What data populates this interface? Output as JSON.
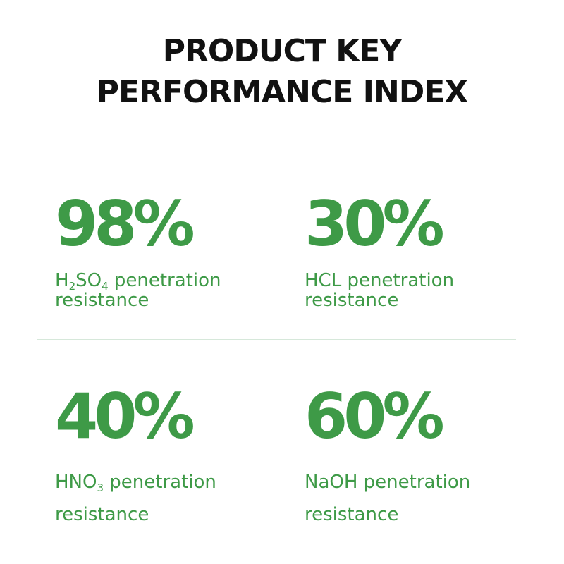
{
  "title": {
    "line1": "PRODUCT KEY",
    "line2": "PERFORMANCE INDEX"
  },
  "metrics": [
    {
      "value": "98%",
      "label_line1_parts": [
        "H",
        "2",
        "SO",
        "4",
        " penetration"
      ],
      "label_line2": "resistance"
    },
    {
      "value": "30%",
      "label_line1": "HCL penetration",
      "label_line2": "resistance"
    },
    {
      "value": "40%",
      "label_line1_parts": [
        "HNO",
        "3",
        " penetration"
      ],
      "label_line2": "resistance"
    },
    {
      "value": "60%",
      "label_line1": "NaOH penetration",
      "label_line2": "resistance"
    }
  ],
  "colors": {
    "accent": "#3e9a47",
    "title": "#111111",
    "divider": "#d6e8da"
  }
}
